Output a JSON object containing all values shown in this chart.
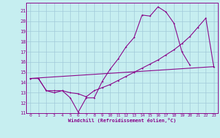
{
  "xlabel": "Windchill (Refroidissement éolien,°C)",
  "background_color": "#c6eef0",
  "grid_color": "#a0c8d8",
  "line_color": "#880088",
  "xlim": [
    -0.5,
    23.5
  ],
  "ylim": [
    11,
    21.8
  ],
  "xticks": [
    0,
    1,
    2,
    3,
    4,
    5,
    6,
    7,
    8,
    9,
    10,
    11,
    12,
    13,
    14,
    15,
    16,
    17,
    18,
    19,
    20,
    21,
    22,
    23
  ],
  "yticks": [
    11,
    12,
    13,
    14,
    15,
    16,
    17,
    18,
    19,
    20,
    21
  ],
  "line1_x": [
    0,
    1,
    2,
    3,
    4,
    5,
    6,
    7,
    8,
    9,
    10,
    11,
    12,
    13,
    14,
    15,
    16,
    17,
    18,
    19,
    20
  ],
  "line1_y": [
    14.4,
    14.4,
    13.2,
    13.0,
    13.2,
    12.5,
    11.1,
    12.5,
    12.5,
    14.1,
    15.3,
    16.3,
    17.5,
    18.4,
    20.6,
    20.5,
    21.4,
    20.9,
    19.8,
    17.0,
    15.7
  ],
  "line2_x": [
    0,
    1,
    2,
    3,
    4,
    5,
    6,
    7,
    8,
    9,
    10,
    11,
    12,
    13,
    14,
    15,
    16,
    17,
    18,
    19,
    20,
    21,
    22,
    23
  ],
  "line2_y": [
    14.4,
    14.4,
    13.2,
    13.2,
    13.2,
    13.0,
    12.9,
    12.6,
    13.2,
    13.5,
    13.8,
    14.2,
    14.6,
    15.0,
    15.4,
    15.8,
    16.2,
    16.7,
    17.2,
    17.8,
    18.5,
    19.4,
    20.3,
    15.5
  ],
  "line3_x": [
    0,
    1,
    2,
    3,
    4,
    5,
    6,
    7,
    8,
    9,
    10,
    11,
    12,
    13,
    14,
    15,
    16,
    17,
    18,
    19,
    20,
    21,
    22,
    23
  ],
  "line3_y": [
    14.4,
    14.45,
    14.5,
    14.55,
    14.6,
    14.65,
    14.7,
    14.75,
    14.8,
    14.85,
    14.9,
    14.95,
    15.0,
    15.05,
    15.1,
    15.15,
    15.2,
    15.25,
    15.3,
    15.35,
    15.4,
    15.45,
    15.5,
    15.55
  ]
}
